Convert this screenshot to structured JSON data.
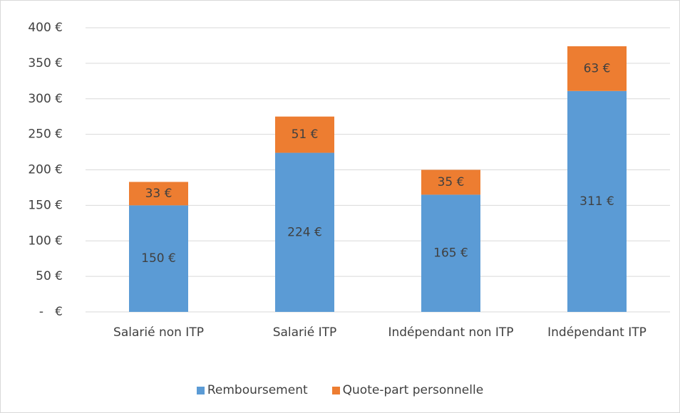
{
  "chart_data": {
    "type": "stacked_bar",
    "categories": [
      "Salarié non ITP",
      "Salarié ITP",
      "Indépendant non ITP",
      "Indépendant ITP"
    ],
    "series": [
      {
        "name": "Remboursement",
        "color": "#5b9bd5",
        "values": [
          150,
          224,
          165,
          311
        ],
        "value_labels": [
          "150 €",
          "224 €",
          "165 €",
          "311 €"
        ]
      },
      {
        "name": "Quote-part personnelle",
        "color": "#ed7d31",
        "values": [
          33,
          51,
          35,
          63
        ],
        "value_labels": [
          "33 €",
          "51 €",
          "35 €",
          "63 €"
        ]
      }
    ],
    "ylim": [
      0,
      400
    ],
    "yticks": [
      {
        "value": 0,
        "label": "-   €"
      },
      {
        "value": 50,
        "label": "50 €"
      },
      {
        "value": 100,
        "label": "100 €"
      },
      {
        "value": 150,
        "label": "150 €"
      },
      {
        "value": 200,
        "label": "200 €"
      },
      {
        "value": 250,
        "label": "250 €"
      },
      {
        "value": 300,
        "label": "300 €"
      },
      {
        "value": 350,
        "label": "350 €"
      },
      {
        "value": 400,
        "label": "400 €"
      }
    ],
    "grid": true,
    "legend": "bottom"
  }
}
